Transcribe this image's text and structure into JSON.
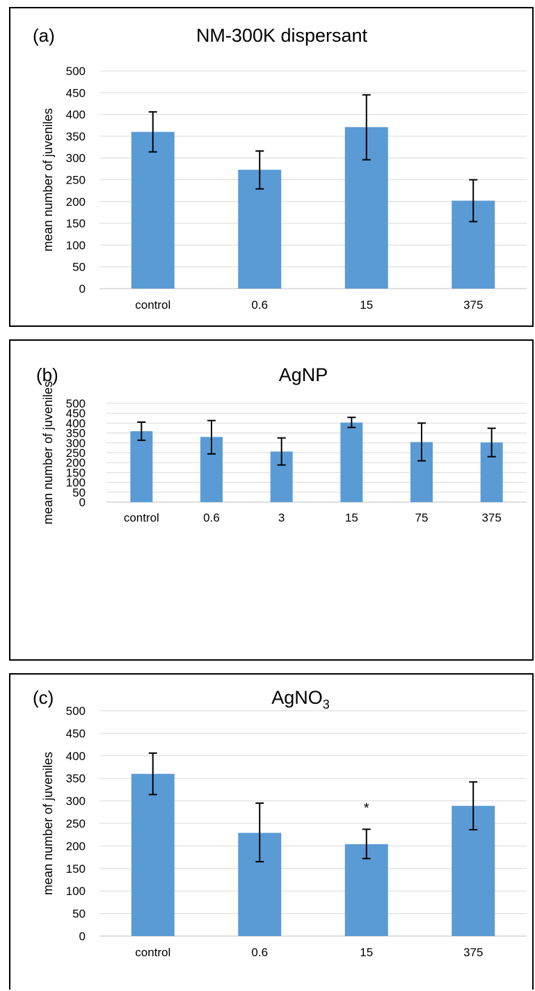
{
  "chart_data": [
    {
      "type": "bar",
      "panel_label": "(a)",
      "title": "NM-300K dispersant",
      "ylabel": "mean number of  juveniles",
      "categories": [
        "control",
        "0.6",
        "15",
        "375"
      ],
      "values": [
        360,
        273,
        371,
        202
      ],
      "error_low": [
        314,
        229,
        296,
        154
      ],
      "error_high": [
        406,
        316,
        445,
        250
      ],
      "ylim": [
        0,
        500
      ],
      "yticks": [
        0,
        50,
        100,
        150,
        200,
        250,
        300,
        350,
        400,
        450,
        500
      ],
      "grid": true,
      "bar_color": "#5b9bd5"
    },
    {
      "type": "bar",
      "panel_label": "(b)",
      "title": "AgNP",
      "ylabel": "mean number of juveniles",
      "categories": [
        "control",
        "0.6",
        "3",
        "15",
        "75",
        "375"
      ],
      "values": [
        359,
        330,
        256,
        403,
        304,
        302
      ],
      "error_low": [
        313,
        244,
        188,
        378,
        209,
        230
      ],
      "error_high": [
        405,
        413,
        325,
        429,
        400,
        374
      ],
      "ylim": [
        0,
        500
      ],
      "yticks": [
        0,
        50,
        100,
        150,
        200,
        250,
        300,
        350,
        400,
        450,
        500
      ],
      "grid": true,
      "bar_color": "#5b9bd5"
    },
    {
      "type": "bar",
      "panel_label": "(c)",
      "title": "AgNO",
      "title_subscript": "3",
      "ylabel": "mean number of juveniles",
      "categories": [
        "control",
        "0.6",
        "15",
        "375"
      ],
      "values": [
        360,
        229,
        204,
        289
      ],
      "error_low": [
        314,
        165,
        172,
        236
      ],
      "error_high": [
        406,
        295,
        237,
        342
      ],
      "annotations": [
        {
          "category": "15",
          "text": "*"
        }
      ],
      "ylim": [
        0,
        500
      ],
      "yticks": [
        0,
        50,
        100,
        150,
        200,
        250,
        300,
        350,
        400,
        450,
        500
      ],
      "grid": true,
      "bar_color": "#5b9bd5"
    }
  ]
}
